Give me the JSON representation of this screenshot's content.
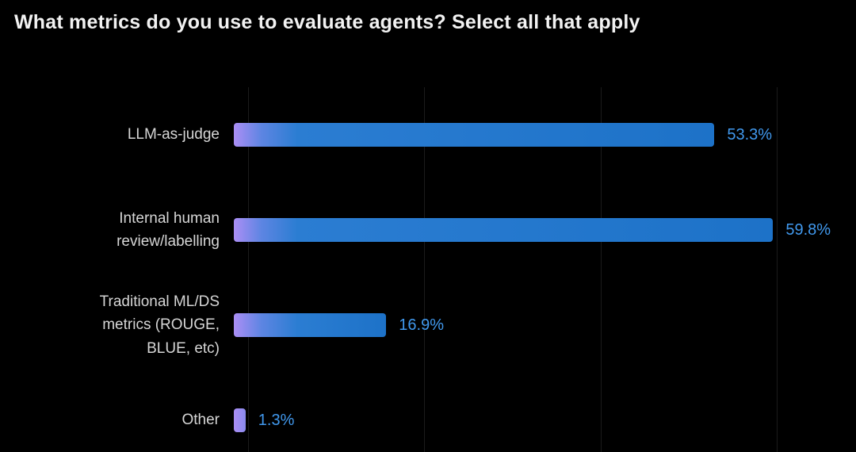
{
  "title": "What metrics do you use to evaluate agents? Select all that apply",
  "colors": {
    "background": "#000000",
    "title_text": "#f2f2f2",
    "category_label": "#d6d6d6",
    "value_label": "#4199ee",
    "bar_blue": "#1d72c8",
    "bar_purple": "#ab8ef5",
    "gridline": "#1b1b1b"
  },
  "chart_data": {
    "type": "bar",
    "orientation": "horizontal",
    "title": "What metrics do you use to evaluate agents? Select all that apply",
    "xlabel": "",
    "ylabel": "",
    "categories": [
      "LLM-as-judge",
      "Internal human review/labelling",
      "Traditional ML/DS metrics (ROUGE, BLUE, etc)",
      "Other"
    ],
    "label_lines": [
      [
        "LLM-as-judge"
      ],
      [
        "Internal human",
        "review/labelling"
      ],
      [
        "Traditional ML/DS",
        "metrics (ROUGE,",
        "BLUE, etc)"
      ],
      [
        "Other"
      ]
    ],
    "values": [
      53.3,
      59.8,
      16.9,
      1.3
    ],
    "value_labels": [
      "53.3%",
      "59.8%",
      "16.9%",
      "1.3%"
    ],
    "xlim": [
      0,
      69
    ],
    "gridlines_at": [
      0,
      20,
      40,
      60
    ],
    "grid": true,
    "legend": false,
    "bar_gradient": [
      "#ab8ef5",
      "#1d72c8"
    ]
  }
}
